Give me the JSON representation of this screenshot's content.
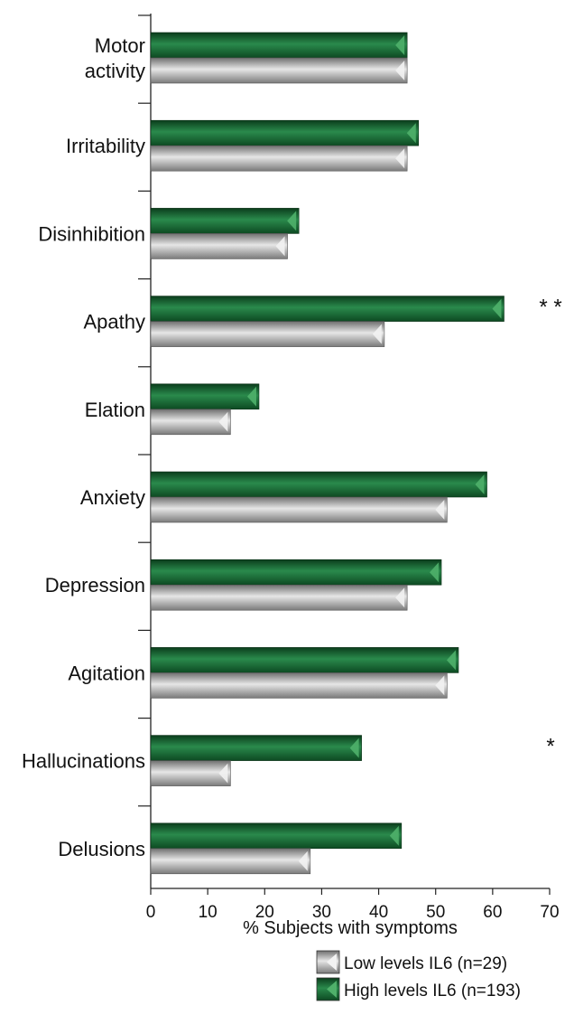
{
  "chart_data": {
    "type": "bar",
    "orientation": "horizontal",
    "categories": [
      "Motor activity",
      "Irritability",
      "Disinhibition",
      "Apathy",
      "Elation",
      "Anxiety",
      "Depression",
      "Agitation",
      "Hallucinations",
      "Delusions"
    ],
    "category_lines": [
      [
        "Motor",
        "activity"
      ],
      [
        "Irritability"
      ],
      [
        "Disinhibition"
      ],
      [
        "Apathy"
      ],
      [
        "Elation"
      ],
      [
        "Anxiety"
      ],
      [
        "Depression"
      ],
      [
        "Agitation"
      ],
      [
        "Hallucinations"
      ],
      [
        "Delusions"
      ]
    ],
    "series": [
      {
        "name": "High levels IL6 (n=193)",
        "color": "#1f6b3a",
        "values": [
          45,
          47,
          26,
          62,
          19,
          59,
          51,
          54,
          37,
          44
        ]
      },
      {
        "name": "Low levels IL6 (n=29)",
        "color": "#a8a8a8",
        "values": [
          45,
          45,
          24,
          41,
          14,
          52,
          45,
          52,
          14,
          28
        ]
      }
    ],
    "significance": [
      {
        "category": "Apathy",
        "marker": "* *"
      },
      {
        "category": "Hallucinations",
        "marker": "*"
      }
    ],
    "xlabel": "% Subjects with symptoms",
    "ylabel": "",
    "xlim": [
      0,
      70
    ],
    "xticks": [
      0,
      10,
      20,
      30,
      40,
      50,
      60,
      70
    ],
    "grid": false,
    "legend_position": "bottom-right",
    "legend_order": [
      "Low levels IL6 (n=29)",
      "High levels IL6 (n=193)"
    ]
  }
}
